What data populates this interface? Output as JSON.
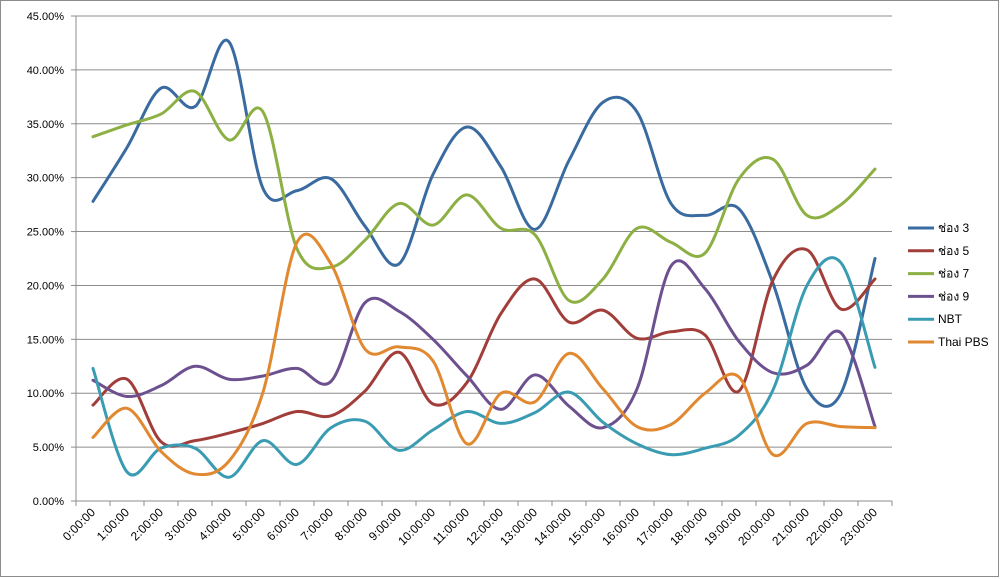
{
  "chart_data": {
    "type": "line",
    "title": "",
    "xlabel": "",
    "ylabel": "",
    "ylim": [
      0,
      45
    ],
    "y_ticks": [
      "0.00%",
      "5.00%",
      "10.00%",
      "15.00%",
      "20.00%",
      "25.00%",
      "30.00%",
      "35.00%",
      "40.00%",
      "45.00%"
    ],
    "categories": [
      "0:00:00",
      "1:00:00",
      "2:00:00",
      "3:00:00",
      "4:00:00",
      "5:00:00",
      "6:00:00",
      "7:00:00",
      "8:00:00",
      "9:00:00",
      "10:00:00",
      "11:00:00",
      "12:00:00",
      "13:00:00",
      "14:00:00",
      "15:00:00",
      "16:00:00",
      "17:00:00",
      "18:00:00",
      "19:00:00",
      "20:00:00",
      "21:00:00",
      "22:00:00",
      "23:00:00"
    ],
    "grid": true,
    "legend_position": "right",
    "smooth": true,
    "series": [
      {
        "name": "ช่อง 3",
        "color": "#3a6ba0",
        "values": [
          27.8,
          32.8,
          38.3,
          36.6,
          42.6,
          29.0,
          28.8,
          29.9,
          25.5,
          22.0,
          30.3,
          34.7,
          31.0,
          25.2,
          31.6,
          37.0,
          36.1,
          27.6,
          26.5,
          27.1,
          20.2,
          10.4,
          10.0,
          22.5
        ]
      },
      {
        "name": "ช่อง 5",
        "color": "#a13e3a",
        "values": [
          8.9,
          11.3,
          5.5,
          5.6,
          6.3,
          7.2,
          8.3,
          7.9,
          10.2,
          13.8,
          9.0,
          11.0,
          17.4,
          20.6,
          16.6,
          17.7,
          15.1,
          15.7,
          15.4,
          10.2,
          20.5,
          23.3,
          17.8,
          20.6
        ]
      },
      {
        "name": "ช่อง 7",
        "color": "#8cb043",
        "values": [
          33.8,
          34.9,
          35.9,
          38.0,
          33.5,
          36.1,
          23.4,
          21.7,
          24.2,
          27.6,
          25.6,
          28.4,
          25.3,
          24.7,
          18.6,
          20.6,
          25.3,
          24.0,
          23.0,
          29.9,
          31.7,
          26.5,
          27.5,
          30.8
        ]
      },
      {
        "name": "ช่อง 9",
        "color": "#6d508f",
        "values": [
          11.2,
          9.7,
          10.7,
          12.5,
          11.3,
          11.6,
          12.3,
          11.1,
          18.4,
          17.6,
          15.0,
          11.6,
          8.5,
          11.7,
          8.8,
          6.8,
          10.4,
          21.8,
          19.7,
          14.8,
          11.9,
          12.6,
          15.6,
          6.9
        ]
      },
      {
        "name": "NBT",
        "color": "#3a9cb3",
        "values": [
          12.3,
          2.7,
          4.9,
          4.9,
          2.2,
          5.6,
          3.4,
          6.8,
          7.4,
          4.7,
          6.6,
          8.3,
          7.2,
          8.2,
          10.1,
          7.3,
          5.3,
          4.3,
          4.9,
          6.1,
          10.3,
          20.0,
          22.1,
          12.4
        ]
      },
      {
        "name": "Thai PBS",
        "color": "#e18931",
        "values": [
          5.9,
          8.6,
          4.6,
          2.5,
          3.7,
          10.1,
          24.0,
          22.0,
          14.1,
          14.3,
          13.0,
          5.3,
          10.0,
          9.2,
          13.7,
          10.4,
          6.9,
          7.1,
          10.0,
          11.5,
          4.3,
          7.2,
          6.9,
          6.8
        ]
      }
    ]
  }
}
